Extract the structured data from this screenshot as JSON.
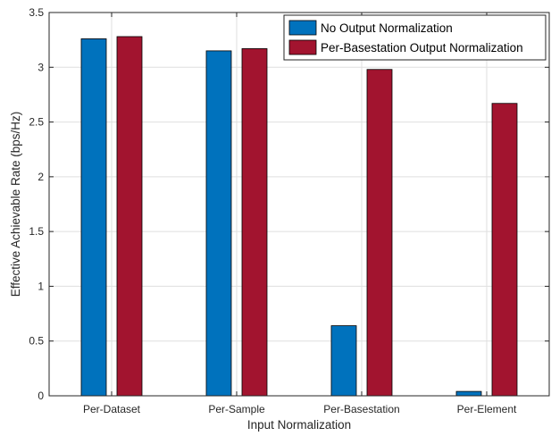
{
  "chart_data": {
    "type": "bar",
    "title": "",
    "xlabel": "Input Normalization",
    "ylabel": "Effective Achievable Rate (bps/Hz)",
    "categories": [
      "Per-Dataset",
      "Per-Sample",
      "Per-Basestation",
      "Per-Element"
    ],
    "series": [
      {
        "name": "No Output Normalization",
        "color": "#0072BD",
        "values": [
          3.26,
          3.15,
          0.64,
          0.04
        ]
      },
      {
        "name": "Per-Basestation Output Normalization",
        "color": "#A2142F",
        "values": [
          3.28,
          3.17,
          2.98,
          2.67
        ]
      }
    ],
    "ylim": [
      0,
      3.5
    ],
    "yticks": [
      0,
      0.5,
      1,
      1.5,
      2,
      2.5,
      3,
      3.5
    ],
    "yticklabels": [
      "0",
      "0.5",
      "1",
      "1.5",
      "2",
      "2.5",
      "3",
      "3.5"
    ],
    "grid": true,
    "legend_position": "top-right"
  }
}
